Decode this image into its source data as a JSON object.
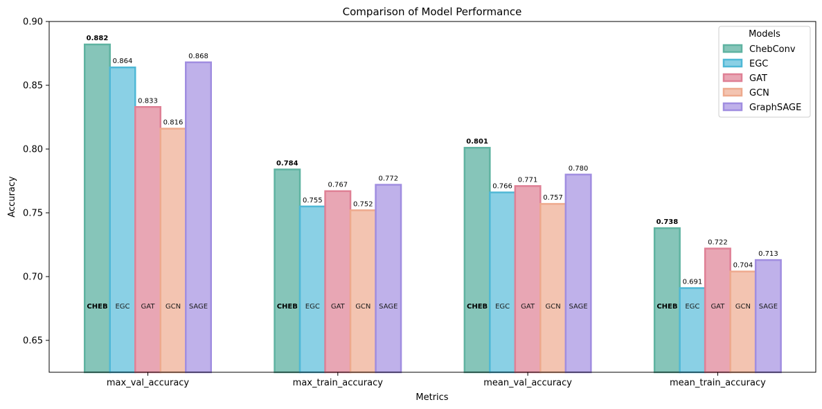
{
  "chart_data": {
    "type": "bar",
    "title": "Comparison of Model Performance",
    "xlabel": "Metrics",
    "ylabel": "Accuracy",
    "ylim": [
      0.625,
      0.9
    ],
    "yticks": [
      "0.65",
      "0.70",
      "0.75",
      "0.80",
      "0.85",
      "0.90"
    ],
    "categories": [
      "max_val_accuracy",
      "max_train_accuracy",
      "mean_val_accuracy",
      "mean_train_accuracy"
    ],
    "legend": {
      "title": "Models",
      "position": "top-right"
    },
    "series": [
      {
        "name": "ChebConv",
        "abbr": "CHEB",
        "fill": "#86c5b9",
        "edge": "#5fb3a1",
        "values": [
          0.882,
          0.784,
          0.801,
          0.738
        ],
        "value_labels": [
          "0.882",
          "0.784",
          "0.801",
          "0.738"
        ]
      },
      {
        "name": "EGC",
        "abbr": "EGC",
        "fill": "#8ad0e5",
        "edge": "#4fb8d6",
        "values": [
          0.864,
          0.755,
          0.766,
          0.691
        ],
        "value_labels": [
          "0.864",
          "0.755",
          "0.766",
          "0.691"
        ]
      },
      {
        "name": "GAT",
        "abbr": "GAT",
        "fill": "#e8a6b4",
        "edge": "#df8095",
        "values": [
          0.833,
          0.767,
          0.771,
          0.722
        ],
        "value_labels": [
          "0.833",
          "0.767",
          "0.771",
          "0.722"
        ]
      },
      {
        "name": "GCN",
        "abbr": "GCN",
        "fill": "#f3c4b1",
        "edge": "#eeaa8e",
        "values": [
          0.816,
          0.752,
          0.757,
          0.704
        ],
        "value_labels": [
          "0.816",
          "0.752",
          "0.757",
          "0.704"
        ]
      },
      {
        "name": "GraphSAGE",
        "abbr": "SAGE",
        "fill": "#bfb1ea",
        "edge": "#a08de0",
        "values": [
          0.868,
          0.772,
          0.78,
          0.713
        ],
        "value_labels": [
          "0.868",
          "0.772",
          "0.780",
          "0.713"
        ]
      }
    ],
    "grid": false
  }
}
